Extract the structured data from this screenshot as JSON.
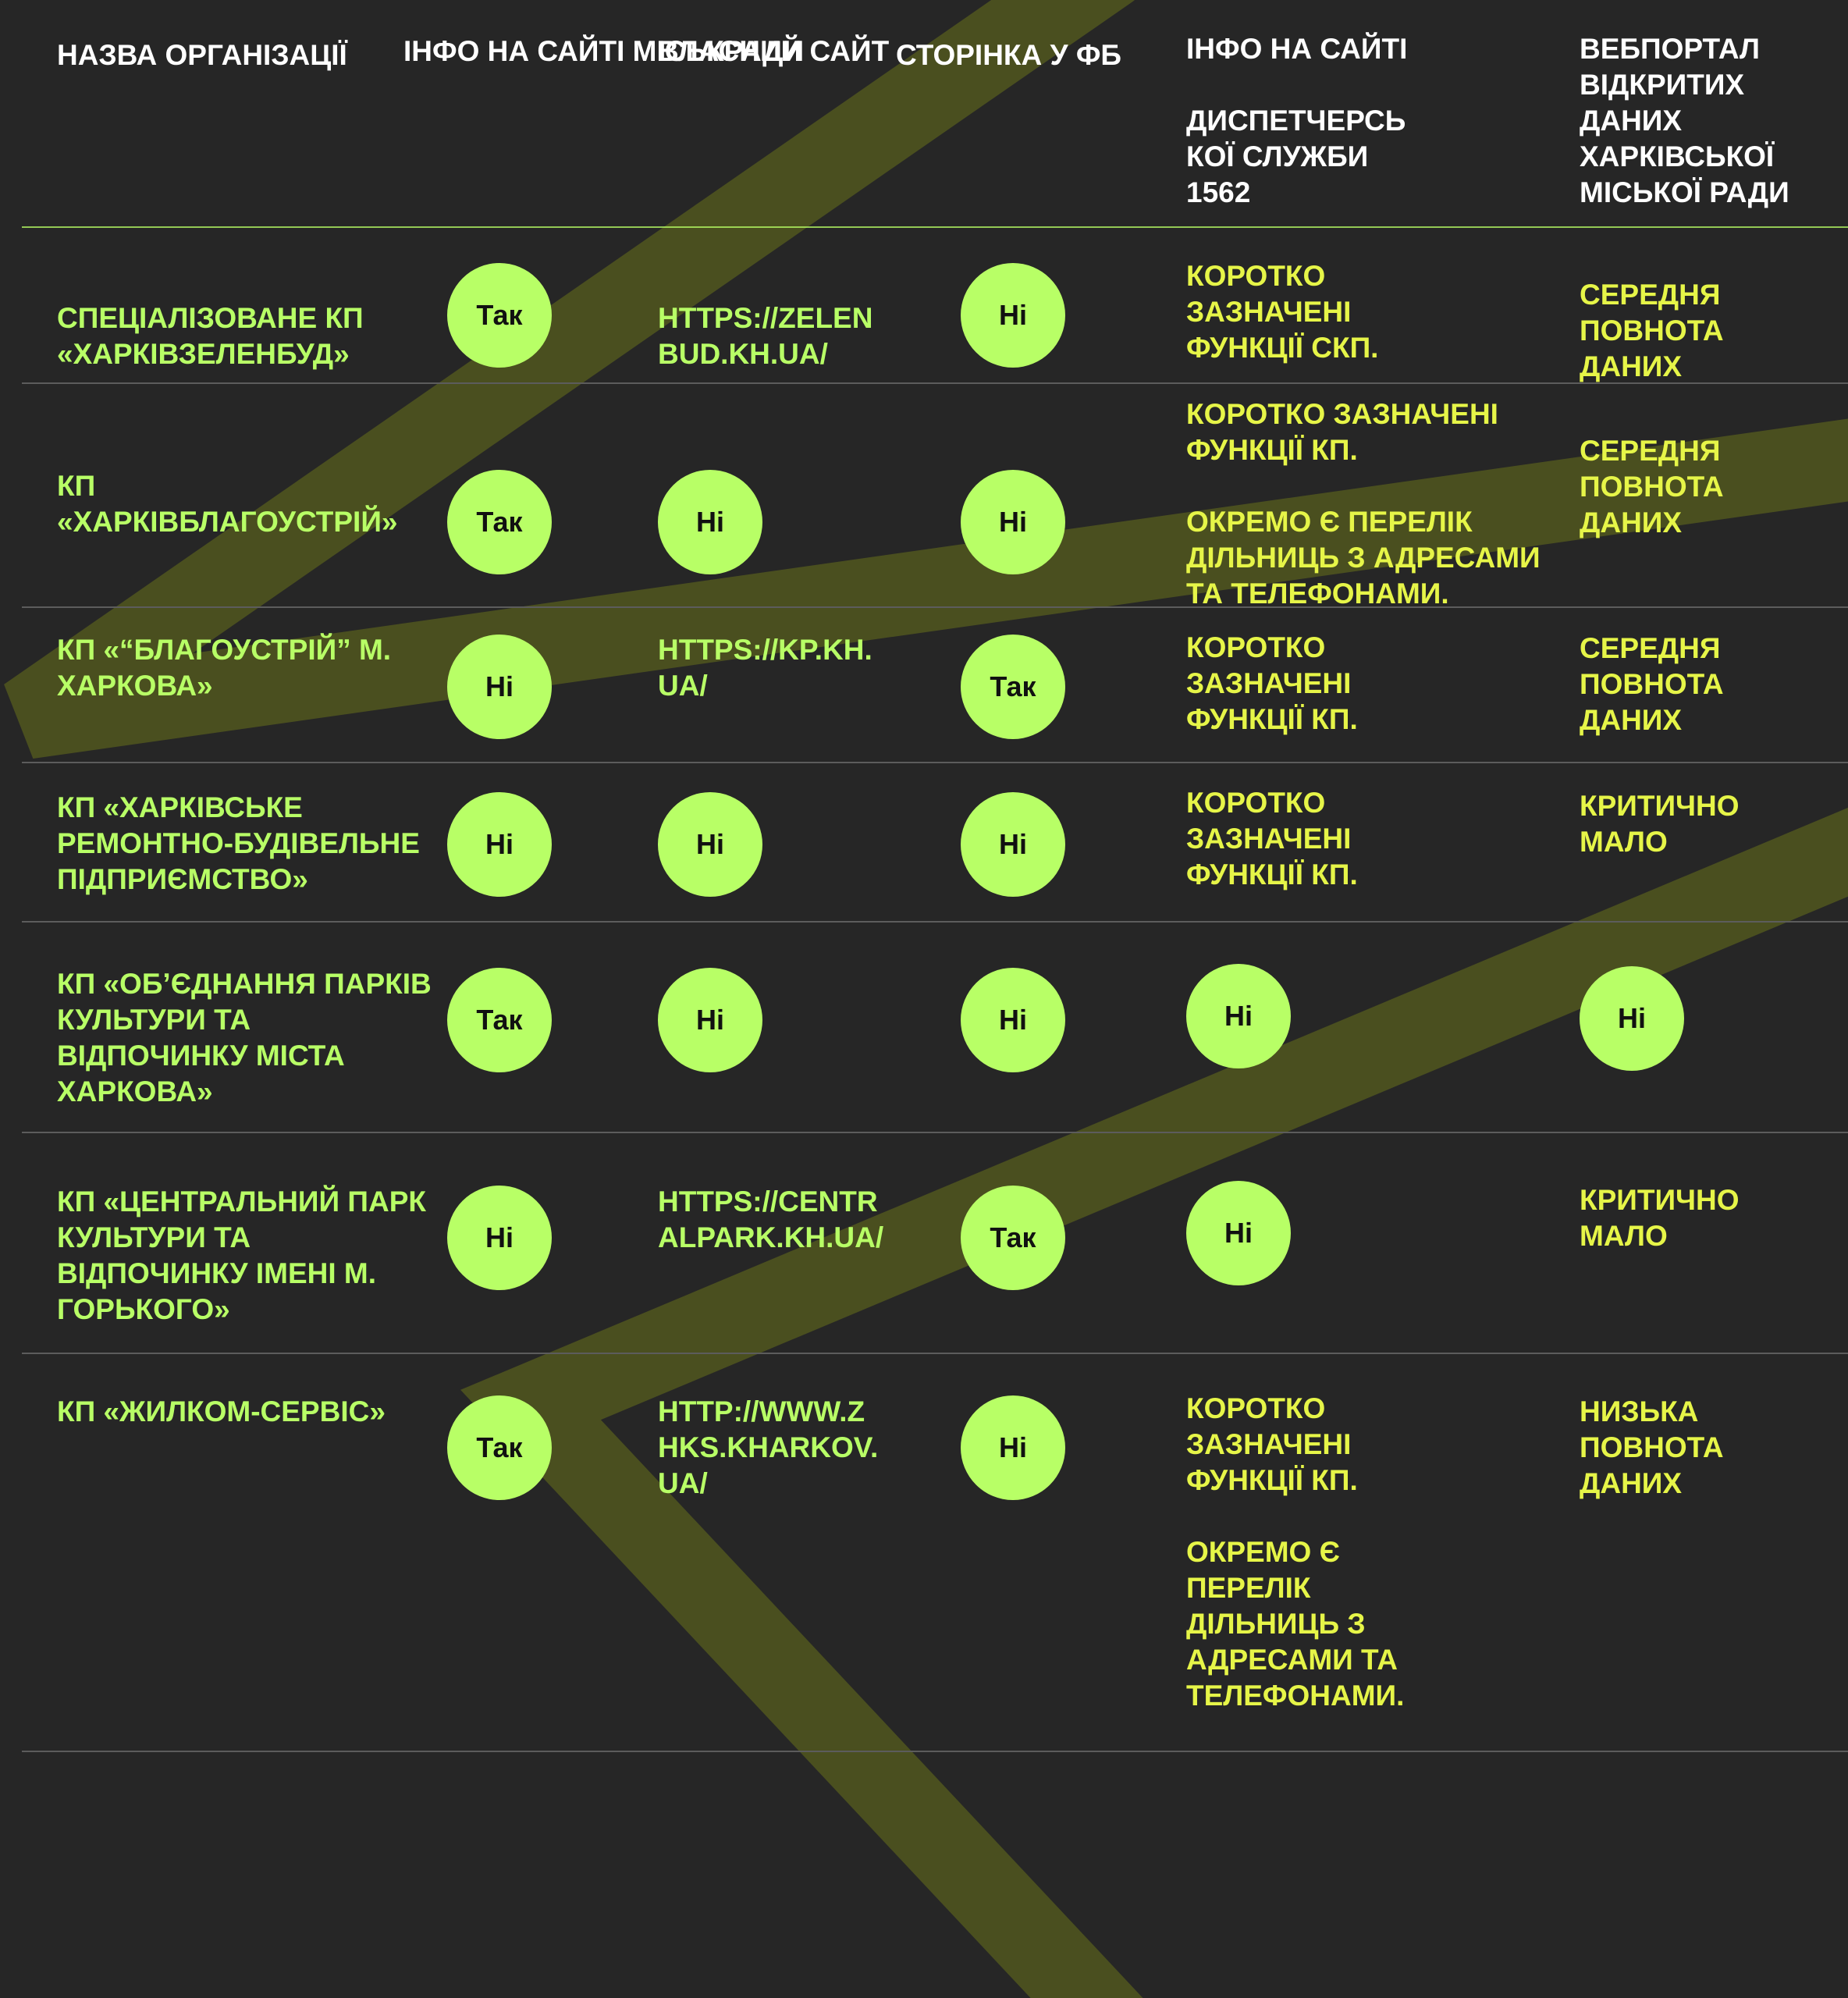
{
  "colors": {
    "background": "#262626",
    "accent": "#b8ff66",
    "yellow": "#e6f548",
    "stripe": "#4a4f1f",
    "header_text": "#ffffff"
  },
  "headers": [
    "Назва організації",
    "Інфо на сайті міськради",
    "Власний сайт",
    "Сторінка у ФБ",
    "Інфо на сайті\n\nдиспетчерсь\nкої служби\n1562",
    "Вебпортал\nвідкритих\nданих\nХарківської\nміської ради"
  ],
  "rows": [
    {
      "org": "Спеціалізоване КП\n«Харківзеленбуд»",
      "city_site": "Так",
      "own_site": "https://zelen\nbud.kh.ua/",
      "fb": "Ні",
      "dispatch": "Коротко\nзазначені\nфункції СКП.",
      "open_data": "Середня\nповнота\nданих"
    },
    {
      "org": "КП\n«Харківблагоустрій»",
      "city_site": "Так",
      "own_site": "Ні",
      "fb": "Ні",
      "dispatch": "Коротко зазначені\nфункції КП.\n\nОкремо є перелік\nдільниць з адресами\nта телефонами.",
      "open_data": "Середня\nповнота\nданих"
    },
    {
      "org": "КП «“Благоустрій” м.\nХаркова»",
      "city_site": "Ні",
      "own_site": "https://kp.kh.\nua/",
      "fb": "Так",
      "dispatch": "Коротко\nзазначені\nфункції КП.",
      "open_data": "Середня\nповнота\nданих"
    },
    {
      "org": "КП «Харківське\nремонтно-будівельне\nпідприємство»",
      "city_site": "Ні",
      "own_site": "Ні",
      "fb": "Ні",
      "dispatch": "Коротко\nзазначені\nфункції КП.",
      "open_data": " Критично\nмало"
    },
    {
      "org": "КП «Об’єднання парків\nкультури та\nвідпочинку міста\nХаркова»",
      "city_site": "Так",
      "own_site": "Ні",
      "fb": "Ні",
      "dispatch": "Ні",
      "open_data": "Ні"
    },
    {
      "org": "КП «Центральний парк\nкультури та\nвідпочинку імені М.\nГорького»",
      "city_site": "Ні",
      "own_site": "https://centr\nalpark.kh.ua/",
      "fb": "Так",
      "dispatch": "Ні",
      "open_data": " Критично\nмало"
    },
    {
      "org": "КП «Жилком-сервіс»",
      "city_site": "Так",
      "own_site": "http://www.z\nhks.kharkov.\nua/",
      "fb": "Ні",
      "dispatch": "Коротко\nзазначені\nфункції КП.\n\nОкремо є\nперелік\nдільниць з\nадресами та\nтелефонами.",
      "open_data": "Низька\nповнота\nданих"
    }
  ]
}
